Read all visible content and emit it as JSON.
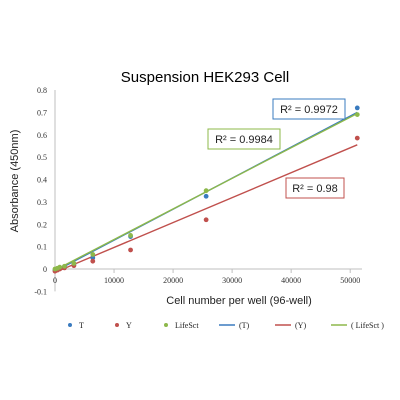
{
  "chart_data": {
    "type": "scatter",
    "title": "Suspension HEK293 Cell",
    "xlabel": "Cell number per well (96-well)",
    "ylabel": "Absorbance (450nm)",
    "xlim": [
      0,
      52000
    ],
    "ylim": [
      -0.1,
      0.8
    ],
    "x_ticks": [
      "0",
      "10000",
      "20000",
      "30000",
      "40000",
      "50000"
    ],
    "x_tick_values": [
      0,
      10000,
      20000,
      30000,
      40000,
      50000
    ],
    "y_ticks": [
      "-0.1",
      "0",
      "0.1",
      "0.2",
      "0.3",
      "0.4",
      "0.5",
      "0.6",
      "0.7",
      "0.8"
    ],
    "y_tick_values": [
      -0.1,
      0,
      0.1,
      0.2,
      0.3,
      0.4,
      0.5,
      0.6,
      0.7,
      0.8
    ],
    "grid": false,
    "legend_position": "bottom",
    "series": [
      {
        "name": "T",
        "color": "#3a7bbf",
        "x": [
          0,
          400,
          800,
          1600,
          3200,
          6400,
          12800,
          25600,
          51200
        ],
        "y": [
          -0.005,
          0.0,
          0.005,
          0.01,
          0.02,
          0.05,
          0.145,
          0.325,
          0.72
        ],
        "trendline": {
          "name": "(T)",
          "x": [
            0,
            51200
          ],
          "y": [
            -0.01,
            0.7
          ]
        }
      },
      {
        "name": "Y",
        "color": "#c0504d",
        "x": [
          0,
          400,
          800,
          1600,
          3200,
          6400,
          12800,
          25600,
          51200
        ],
        "y": [
          -0.01,
          -0.005,
          0.0,
          0.005,
          0.015,
          0.035,
          0.085,
          0.22,
          0.585
        ],
        "trendline": {
          "name": "(Y)",
          "x": [
            0,
            51200
          ],
          "y": [
            -0.015,
            0.555
          ]
        }
      },
      {
        "name": "LifeSct",
        "color": "#8db84a",
        "x": [
          0,
          400,
          800,
          1600,
          3200,
          6400,
          12800,
          25600,
          51200
        ],
        "y": [
          0.0,
          0.003,
          0.008,
          0.012,
          0.025,
          0.065,
          0.15,
          0.35,
          0.69
        ],
        "trendline": {
          "name": "( LifeSct )",
          "x": [
            0,
            51200
          ],
          "y": [
            -0.005,
            0.695
          ]
        }
      }
    ],
    "annotations": [
      {
        "text": "R² = 0.9972",
        "box_color": "#3a7bbf"
      },
      {
        "text": "R² = 0.9984",
        "box_color": "#8db84a"
      },
      {
        "text": "R² = 0.98",
        "box_color": "#c0504d"
      }
    ]
  }
}
